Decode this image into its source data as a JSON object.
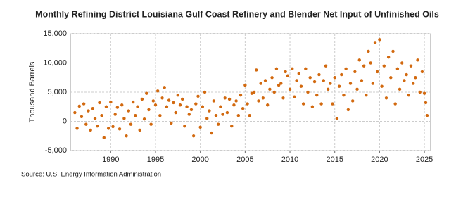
{
  "chart_data": {
    "type": "scatter",
    "title": "Monthly Refining District Louisiana Gulf Coast Refinery and Blender Net Input of Unfinished Oils",
    "y_label": "Thousand Barrels",
    "source": "Source: U.S. Energy Information Administration",
    "color": "#d2690f",
    "grid": true,
    "xlim": [
      1985.5,
      2025.7
    ],
    "xticks": [
      1990,
      1995,
      2000,
      2005,
      2010,
      2015,
      2020,
      2025
    ],
    "ylim": [
      -5000,
      15000
    ],
    "yticks": [
      {
        "value": -5000,
        "label": "-5,000"
      },
      0,
      {
        "value": 5000,
        "label": "5,000"
      },
      {
        "value": 10000,
        "label": "10,000"
      },
      {
        "value": 15000,
        "label": "15,000"
      }
    ],
    "x": [
      1986,
      1986.25,
      1986.5,
      1986.75,
      1987,
      1987.25,
      1987.5,
      1987.75,
      1988,
      1988.25,
      1988.5,
      1988.75,
      1989,
      1989.25,
      1989.5,
      1989.75,
      1990,
      1990.25,
      1990.5,
      1990.75,
      1991,
      1991.25,
      1991.5,
      1991.75,
      1992,
      1992.25,
      1992.5,
      1992.75,
      1993,
      1993.25,
      1993.5,
      1993.75,
      1994,
      1994.25,
      1994.5,
      1994.75,
      1995,
      1995.25,
      1995.5,
      1995.75,
      1996,
      1996.25,
      1996.5,
      1996.75,
      1997,
      1997.25,
      1997.5,
      1997.75,
      1998,
      1998.25,
      1998.5,
      1998.75,
      1999,
      1999.25,
      1999.5,
      1999.75,
      2000,
      2000.25,
      2000.5,
      2000.75,
      2001,
      2001.25,
      2001.5,
      2001.75,
      2002,
      2002.25,
      2002.5,
      2002.75,
      2003,
      2003.25,
      2003.5,
      2003.75,
      2004,
      2004.25,
      2004.5,
      2004.75,
      2005,
      2005.25,
      2005.5,
      2005.75,
      2006,
      2006.25,
      2006.5,
      2006.75,
      2007,
      2007.25,
      2007.5,
      2007.75,
      2008,
      2008.25,
      2008.5,
      2008.75,
      2009,
      2009.25,
      2009.5,
      2009.75,
      2010,
      2010.25,
      2010.5,
      2010.75,
      2011,
      2011.25,
      2011.5,
      2011.75,
      2012,
      2012.25,
      2012.5,
      2012.75,
      2013,
      2013.25,
      2013.5,
      2013.75,
      2014,
      2014.25,
      2014.5,
      2014.75,
      2015,
      2015.25,
      2015.5,
      2015.75,
      2016,
      2016.25,
      2016.5,
      2016.75,
      2017,
      2017.25,
      2017.5,
      2017.75,
      2018,
      2018.25,
      2018.5,
      2018.75,
      2019,
      2019.25,
      2019.5,
      2019.75,
      2020,
      2020.25,
      2020.5,
      2020.75,
      2021,
      2021.25,
      2021.5,
      2021.75,
      2022,
      2022.25,
      2022.5,
      2022.75,
      2023,
      2023.25,
      2023.5,
      2023.75,
      2024,
      2024.25,
      2024.5,
      2024.75,
      2025,
      2025.15,
      2025.3
    ],
    "values": [
      1500,
      -1200,
      2600,
      800,
      3000,
      -500,
      1800,
      -1500,
      2200,
      500,
      -800,
      3200,
      1000,
      -2800,
      2500,
      -1200,
      3300,
      -900,
      1200,
      2400,
      -1300,
      2800,
      500,
      -2500,
      1800,
      -500,
      3300,
      1000,
      2500,
      -1500,
      3800,
      400,
      4800,
      2000,
      -500,
      3500,
      2800,
      5200,
      1000,
      4000,
      5800,
      2500,
      3600,
      -300,
      3200,
      1500,
      4500,
      2800,
      3800,
      -800,
      2500,
      1200,
      2000,
      -2500,
      3000,
      4300,
      -1000,
      2500,
      5000,
      500,
      1800,
      -2000,
      3500,
      1000,
      -500,
      2500,
      1200,
      4000,
      1500,
      3800,
      -800,
      2800,
      3500,
      1000,
      4500,
      2200,
      6200,
      3000,
      1000,
      4800,
      5000,
      8800,
      3500,
      6500,
      4000,
      7000,
      2800,
      5500,
      7500,
      5000,
      9000,
      6200,
      6500,
      4000,
      8500,
      7800,
      5500,
      9000,
      4200,
      7000,
      8200,
      6000,
      3000,
      9000,
      5000,
      7500,
      2500,
      6800,
      4500,
      8000,
      3000,
      7000,
      9500,
      5500,
      6500,
      3000,
      7500,
      500,
      6000,
      8000,
      4500,
      9000,
      2000,
      6500,
      3500,
      8500,
      5500,
      10500,
      7000,
      9500,
      4500,
      12000,
      10000,
      6500,
      13500,
      8500,
      14000,
      6000,
      9500,
      4000,
      11000,
      7500,
      12000,
      3000,
      9000,
      5500,
      10000,
      7000,
      8000,
      4500,
      9500,
      6500,
      7500,
      10500,
      5000,
      8500,
      4800,
      3200,
      1000
    ]
  }
}
